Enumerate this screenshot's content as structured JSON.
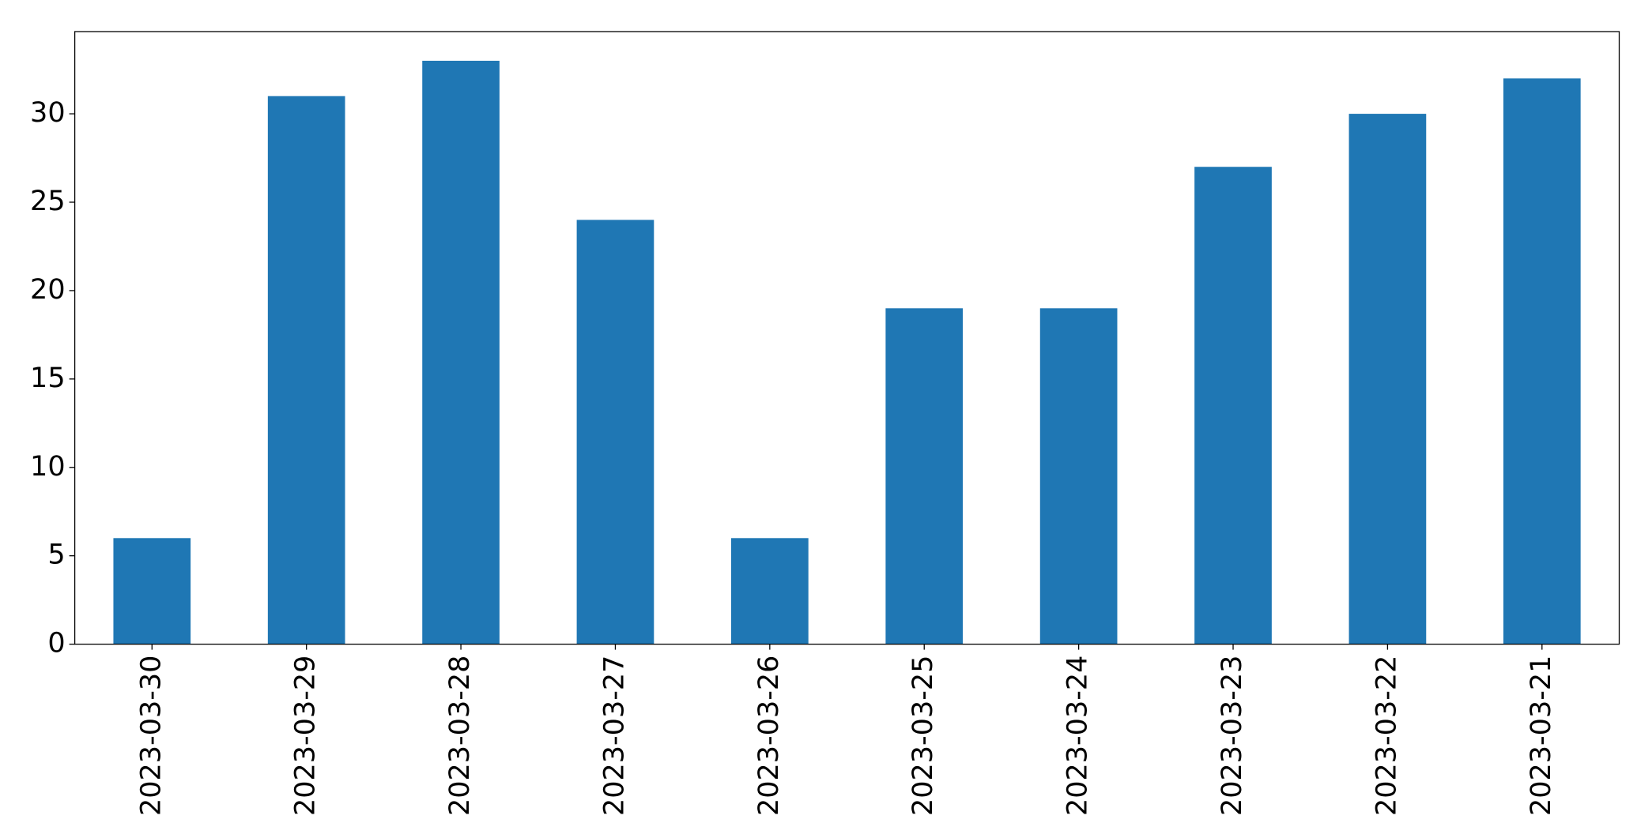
{
  "chart_data": {
    "type": "bar",
    "categories": [
      "2023-03-30",
      "2023-03-29",
      "2023-03-28",
      "2023-03-27",
      "2023-03-26",
      "2023-03-25",
      "2023-03-24",
      "2023-03-23",
      "2023-03-22",
      "2023-03-21"
    ],
    "values": [
      6,
      31,
      33,
      24,
      6,
      19,
      19,
      27,
      30,
      32
    ],
    "color": "#1f77b4",
    "ylim": [
      0,
      34.65
    ],
    "yticks": [
      0,
      5,
      10,
      15,
      20,
      25,
      30
    ],
    "grid": false
  }
}
